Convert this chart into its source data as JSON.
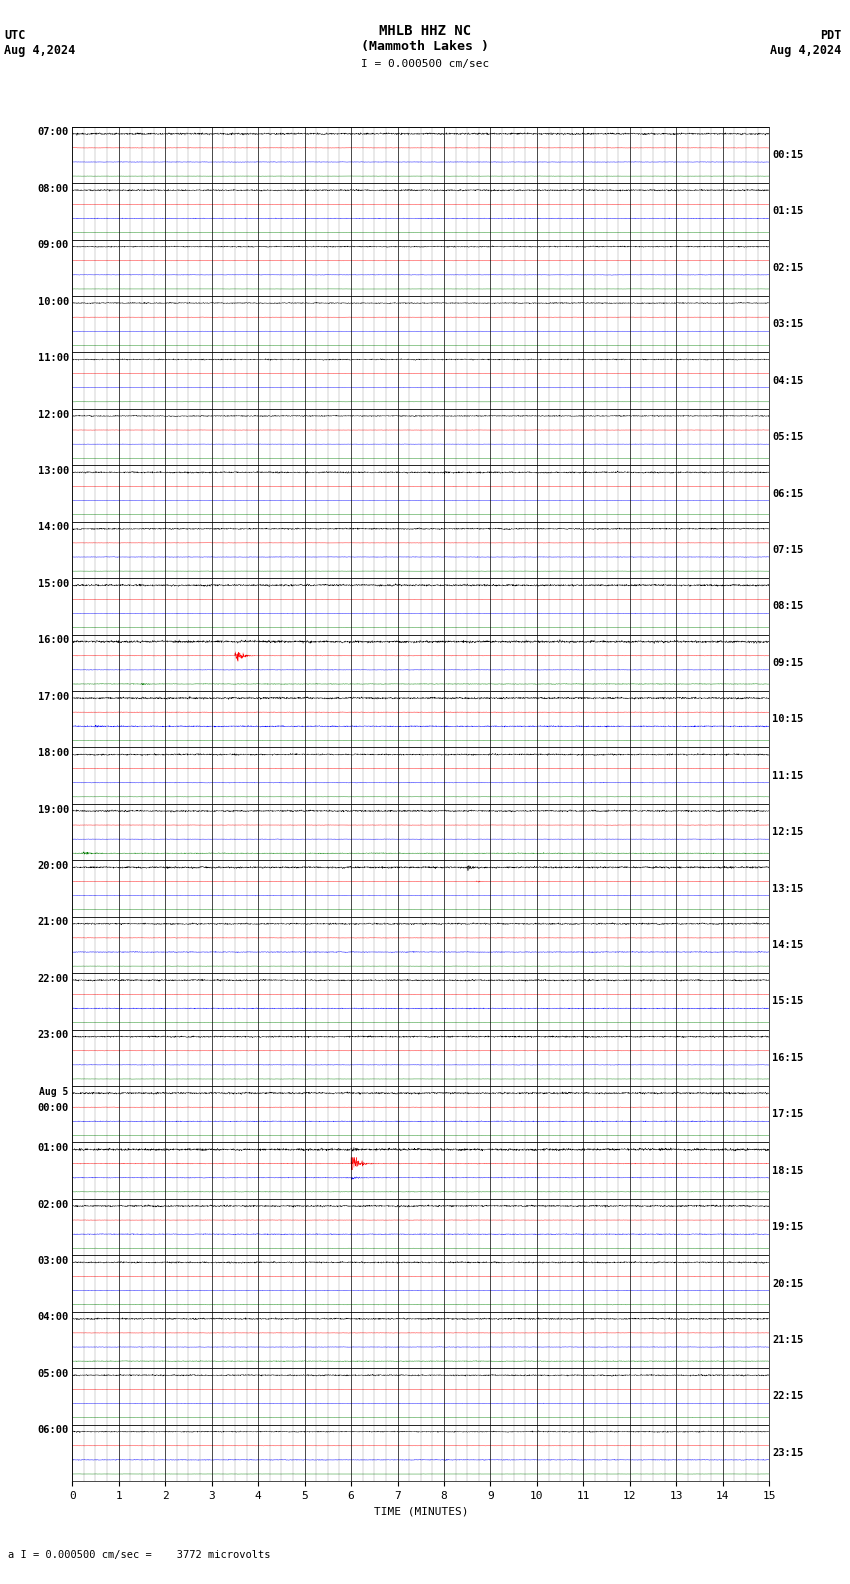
{
  "title_line1": "MHLB HHZ NC",
  "title_line2": "(Mammoth Lakes )",
  "scale_label": "I = 0.000500 cm/sec",
  "bottom_label": "a I = 0.000500 cm/sec =    3772 microvolts",
  "xlabel": "TIME (MINUTES)",
  "bg_color": "#ffffff",
  "trace_colors": [
    "black",
    "red",
    "blue",
    "green"
  ],
  "left_times": [
    "07:00",
    "08:00",
    "09:00",
    "10:00",
    "11:00",
    "12:00",
    "13:00",
    "14:00",
    "15:00",
    "16:00",
    "17:00",
    "18:00",
    "19:00",
    "20:00",
    "21:00",
    "22:00",
    "23:00",
    "Aug 5\n00:00",
    "01:00",
    "02:00",
    "03:00",
    "04:00",
    "05:00",
    "06:00"
  ],
  "right_times": [
    "00:15",
    "01:15",
    "02:15",
    "03:15",
    "04:15",
    "05:15",
    "06:15",
    "07:15",
    "08:15",
    "09:15",
    "10:15",
    "11:15",
    "12:15",
    "13:15",
    "14:15",
    "15:15",
    "16:15",
    "17:15",
    "18:15",
    "19:15",
    "20:15",
    "21:15",
    "22:15",
    "23:15"
  ],
  "num_rows": 24,
  "traces_per_row": 4,
  "xlim": [
    0,
    15
  ],
  "xticks": [
    0,
    1,
    2,
    3,
    4,
    5,
    6,
    7,
    8,
    9,
    10,
    11,
    12,
    13,
    14,
    15
  ],
  "figsize": [
    8.5,
    15.84
  ],
  "dpi": 100
}
